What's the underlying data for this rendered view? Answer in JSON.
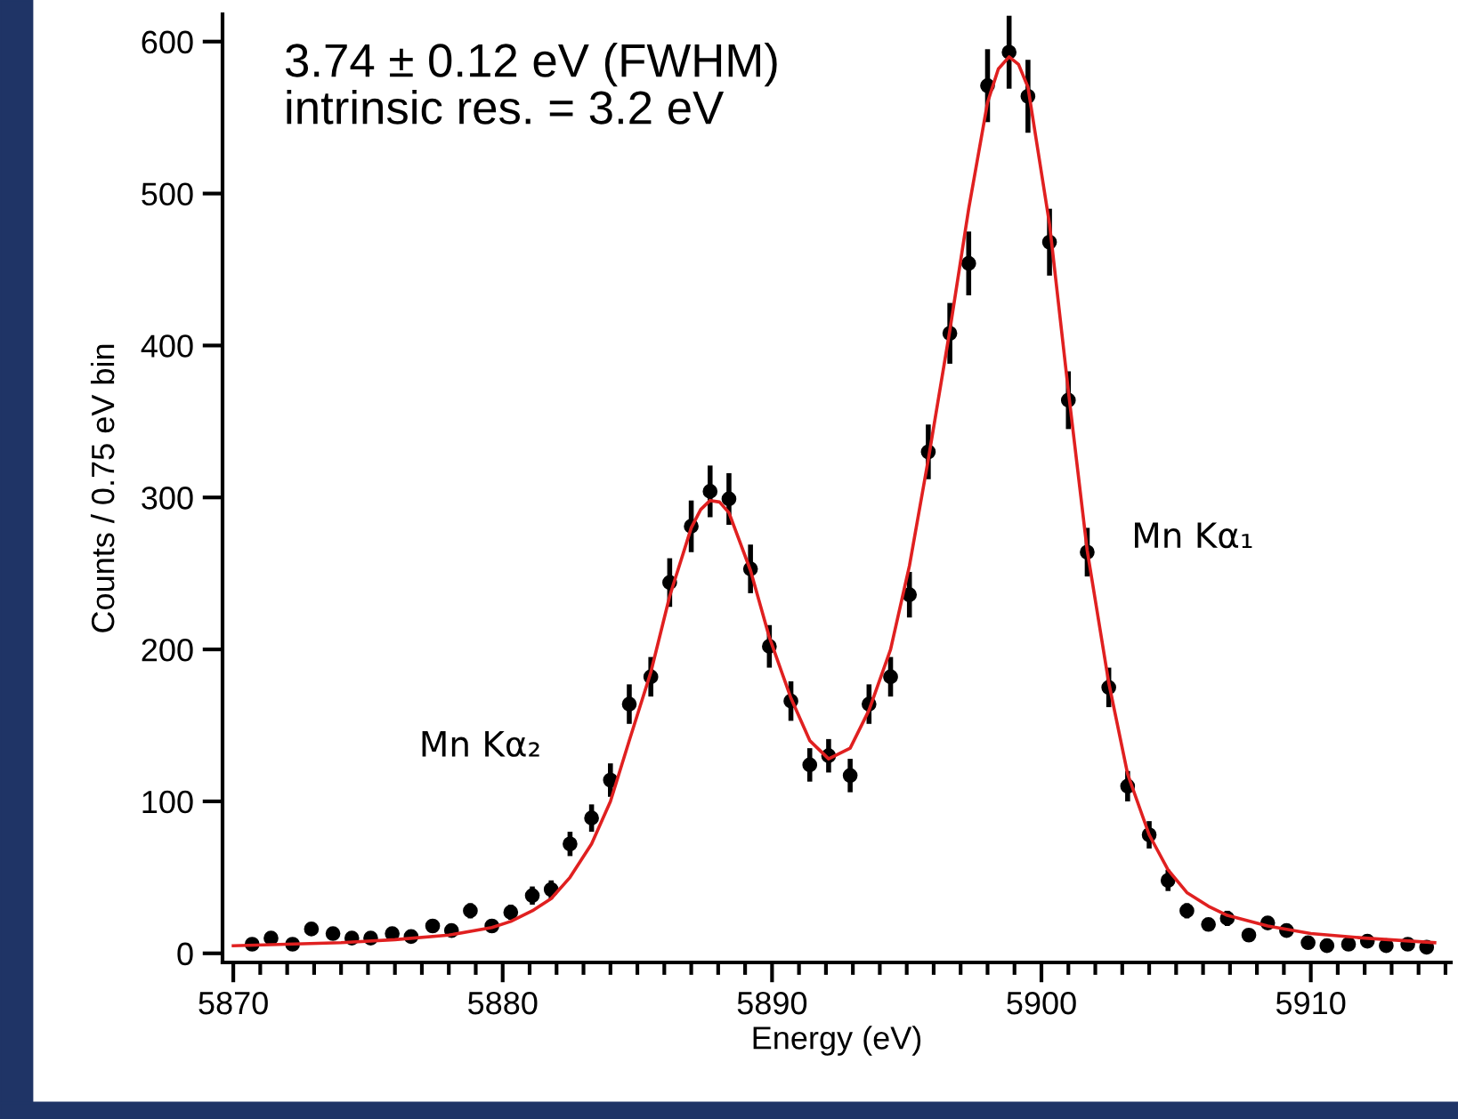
{
  "chart_data": {
    "type": "scatter",
    "xlabel": "Energy (eV)",
    "ylabel": "Counts / 0.75 eV bin",
    "annotations": [
      "3.74 ± 0.12 eV (FWHM)\nintrinsic res. = 3.2 eV",
      "Mn Kα₂",
      "Mn Kα₁"
    ],
    "xlim": [
      5869.6,
      5915.2
    ],
    "ylim": [
      -6,
      618
    ],
    "xticks": [
      5870,
      5880,
      5890,
      5900,
      5910
    ],
    "yticks": [
      0,
      100,
      200,
      300,
      400,
      500,
      600
    ],
    "grid": false,
    "legend": false,
    "marker": "circle",
    "series": [
      {
        "color": "#000000",
        "x": [
          5870.7,
          5871.4,
          5872.2,
          5872.9,
          5873.7,
          5874.4,
          5875.1,
          5875.9,
          5876.6,
          5877.4,
          5878.1,
          5878.8,
          5879.6,
          5880.3,
          5881.1,
          5881.8,
          5882.5,
          5883.3,
          5884.0,
          5884.7,
          5885.5,
          5886.2,
          5887.0,
          5887.7,
          5888.4,
          5889.2,
          5889.9,
          5890.7,
          5891.4,
          5892.1,
          5892.9,
          5893.6,
          5894.4,
          5895.1,
          5895.8,
          5896.6,
          5897.3,
          5898.0,
          5898.8,
          5899.5,
          5900.3,
          5901.0,
          5901.7,
          5902.5,
          5903.2,
          5904.0,
          5904.7,
          5905.4,
          5906.2,
          5906.9,
          5907.7,
          5908.4,
          5909.1,
          5909.9,
          5910.6,
          5911.4,
          5912.1,
          5912.8,
          5913.6,
          5914.3
        ],
        "values": [
          6,
          10,
          6,
          16,
          13,
          10,
          10,
          13,
          11,
          18,
          15,
          28,
          18,
          27,
          38,
          42,
          72,
          89,
          114,
          164,
          182,
          244,
          281,
          304,
          299,
          253,
          202,
          166,
          124,
          130,
          117,
          164,
          182,
          236,
          330,
          408,
          454,
          571,
          593,
          564,
          468,
          364,
          264,
          175,
          110,
          78,
          48,
          28,
          19,
          23,
          12,
          20,
          15,
          7,
          5,
          6,
          8,
          5,
          6,
          4
        ],
        "errors": [
          2,
          3,
          2,
          4,
          4,
          3,
          3,
          4,
          3,
          4,
          4,
          5,
          4,
          5,
          6,
          6,
          8,
          9,
          11,
          13,
          13,
          16,
          17,
          17,
          17,
          16,
          14,
          13,
          11,
          11,
          11,
          13,
          13,
          15,
          18,
          20,
          21,
          24,
          24,
          24,
          22,
          19,
          16,
          13,
          10,
          9,
          7,
          5,
          4,
          5,
          3,
          4,
          4,
          3,
          2,
          2,
          3,
          2,
          2,
          2
        ]
      },
      {
        "type": "line",
        "color": "#e02020",
        "line_style": "solid",
        "marker": "none",
        "x": [
          5870,
          5872,
          5874,
          5876,
          5878,
          5879.6,
          5880.3,
          5881.1,
          5881.8,
          5882.5,
          5883.3,
          5884.0,
          5884.7,
          5885.5,
          5886.2,
          5887.0,
          5887.35,
          5887.7,
          5888.05,
          5888.4,
          5889.2,
          5889.9,
          5890.7,
          5891.4,
          5892.1,
          5892.9,
          5893.6,
          5894.4,
          5895.1,
          5895.8,
          5896.6,
          5897.3,
          5898.0,
          5898.4,
          5898.8,
          5899.15,
          5899.5,
          5900.3,
          5901.0,
          5901.7,
          5902.5,
          5903.2,
          5904.0,
          5904.7,
          5905.4,
          5906.2,
          5906.9,
          5908.4,
          5910,
          5912,
          5914.6
        ],
        "values": [
          5,
          6,
          7,
          9,
          12,
          17,
          21,
          28,
          36,
          50,
          72,
          100,
          140,
          185,
          235,
          280,
          292,
          298,
          297,
          290,
          252,
          208,
          168,
          140,
          128,
          135,
          160,
          200,
          255,
          325,
          410,
          490,
          560,
          582,
          590,
          585,
          570,
          480,
          370,
          265,
          178,
          118,
          78,
          55,
          40,
          31,
          25,
          18,
          13,
          10,
          7
        ]
      }
    ]
  }
}
